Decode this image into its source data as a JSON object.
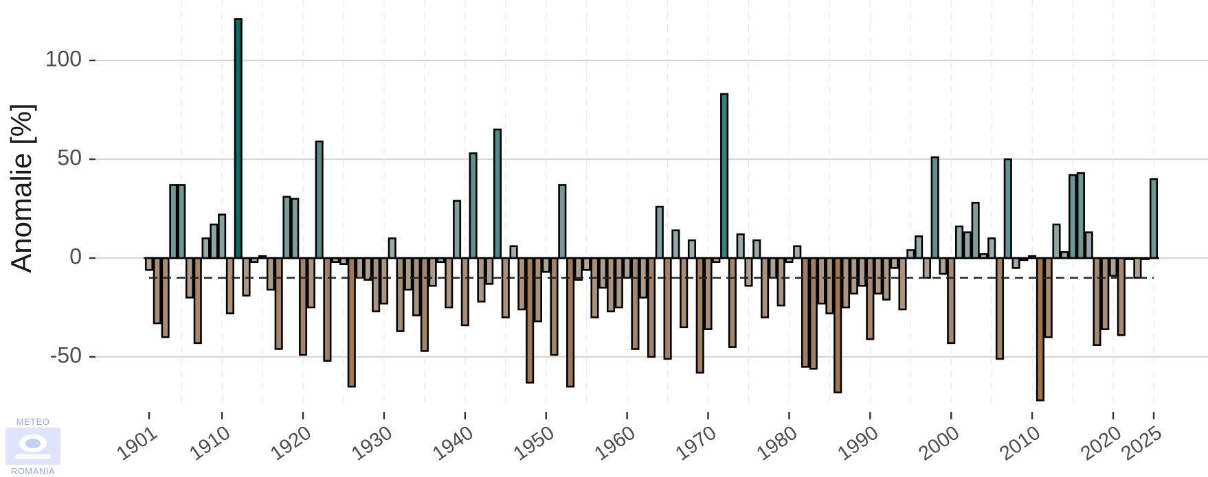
{
  "chart_data": {
    "type": "bar",
    "title": "",
    "xlabel": "",
    "ylabel": "Anomalie [%]",
    "x_start": 1901,
    "x_end": 2025,
    "x_ticks": [
      1901,
      1910,
      1920,
      1930,
      1940,
      1950,
      1960,
      1970,
      1980,
      1990,
      2000,
      2010,
      2020,
      2025
    ],
    "y_ticks": [
      -50,
      0,
      50,
      100
    ],
    "ylim": [
      -79,
      125
    ],
    "reference_line": -10,
    "grid": "horizontal major lines, vertical dashed minor lines",
    "colors": {
      "positive_max": "#0a6b66",
      "positive_min": "#a9b3b1",
      "negative_min": "#b3aa9f",
      "negative_max": "#9e7350",
      "bar_outline": "#000000",
      "reference_line": "#222222",
      "grid": "#d9d9d9"
    },
    "years": [
      1901,
      1902,
      1903,
      1904,
      1905,
      1906,
      1907,
      1908,
      1909,
      1910,
      1911,
      1912,
      1913,
      1914,
      1915,
      1916,
      1917,
      1918,
      1919,
      1920,
      1921,
      1922,
      1923,
      1924,
      1925,
      1926,
      1927,
      1928,
      1929,
      1930,
      1931,
      1932,
      1933,
      1934,
      1935,
      1936,
      1937,
      1938,
      1939,
      1940,
      1941,
      1942,
      1943,
      1944,
      1945,
      1946,
      1947,
      1948,
      1949,
      1950,
      1951,
      1952,
      1953,
      1954,
      1955,
      1956,
      1957,
      1958,
      1959,
      1960,
      1961,
      1962,
      1963,
      1964,
      1965,
      1966,
      1967,
      1968,
      1969,
      1970,
      1971,
      1972,
      1973,
      1974,
      1975,
      1976,
      1977,
      1978,
      1979,
      1980,
      1981,
      1982,
      1983,
      1984,
      1985,
      1986,
      1987,
      1988,
      1989,
      1990,
      1991,
      1992,
      1993,
      1994,
      1995,
      1996,
      1997,
      1998,
      1999,
      2000,
      2001,
      2002,
      2003,
      2004,
      2005,
      2006,
      2007,
      2008,
      2009,
      2010,
      2011,
      2012,
      2013,
      2014,
      2015,
      2016,
      2017,
      2018,
      2019,
      2020,
      2021,
      2022,
      2023,
      2024,
      2025
    ],
    "values": [
      -6,
      -33,
      -40,
      37,
      37,
      -20,
      -43,
      10,
      17,
      22,
      -28,
      121,
      -19,
      -2,
      1,
      -16,
      -46,
      31,
      30,
      -49,
      -25,
      59,
      -52,
      -2,
      -3,
      -65,
      -10,
      -11,
      -27,
      -23,
      10,
      -37,
      -16,
      -29,
      -47,
      -14,
      -2,
      -25,
      29,
      -34,
      53,
      -22,
      -13,
      65,
      -30,
      6,
      -26,
      -63,
      -32,
      -7,
      -49,
      37,
      -65,
      -11,
      -6,
      -30,
      -15,
      -27,
      -25,
      -10,
      -46,
      -20,
      -50,
      26,
      -51,
      14,
      -35,
      9,
      -58,
      -36,
      -2,
      83,
      -45,
      12,
      -14,
      9,
      -30,
      -10,
      -24,
      -2,
      6,
      -55,
      -56,
      -23,
      -28,
      -68,
      -25,
      -18,
      -14,
      -41,
      -18,
      -21,
      -5,
      -26,
      4,
      11,
      -10,
      51,
      -8,
      -43,
      16,
      13,
      28,
      2,
      10,
      -51,
      50,
      -5,
      -1,
      1,
      -72,
      -40,
      17,
      3,
      42,
      43,
      13,
      -44,
      -36,
      -9,
      -39,
      0,
      -10,
      0,
      40
    ]
  },
  "logo": {
    "top_text": "METEO",
    "bottom_text": "ROMANIA"
  }
}
